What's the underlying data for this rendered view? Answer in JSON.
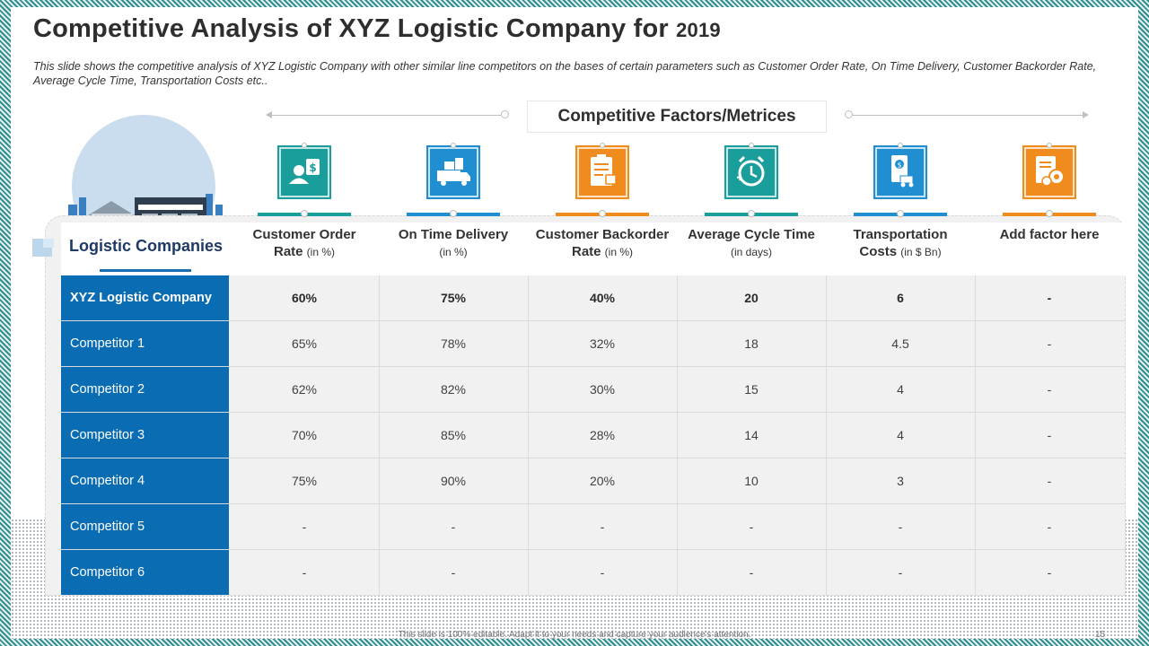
{
  "slide": {
    "title_main": "Competitive Analysis of XYZ Logistic Company for",
    "title_year": "2019",
    "subtitle": "This slide shows the competitive analysis of XYZ Logistic Company with other similar line competitors on the bases of certain parameters such as Customer Order Rate, On Time Delivery, Customer Backorder Rate, Average Cycle Time, Transportation Costs etc..",
    "factors_title": "Competitive Factors/Metrices",
    "companies_title": "Logistic Companies",
    "footer": "This slide is 100% editable. Adapt it to your needs and capture your audience's attention.",
    "page_number": "15"
  },
  "columns": [
    {
      "line1": "Customer Order",
      "line2": "Rate",
      "unit": "(in %)",
      "icon": "customer-order-icon",
      "color": "#1a9e9b"
    },
    {
      "line1": "On Time Delivery",
      "line2": "",
      "unit": "(in %)",
      "icon": "delivery-truck-icon",
      "color": "#1f8fd1"
    },
    {
      "line1": "Customer Backorder",
      "line2": "Rate",
      "unit": "(in %)",
      "icon": "backorder-clipboard-icon",
      "color": "#f08c1e"
    },
    {
      "line1": "Average Cycle Time",
      "line2": "",
      "unit": "(in days)",
      "icon": "cycle-clock-icon",
      "color": "#1a9e9b"
    },
    {
      "line1": "Transportation",
      "line2": "Costs",
      "unit": "(in $ Bn)",
      "icon": "transport-cost-icon",
      "color": "#1f8fd1"
    },
    {
      "line1": "Add factor here",
      "line2": "",
      "unit": "",
      "icon": "settings-document-icon",
      "color": "#f08c1e"
    }
  ],
  "rows": [
    {
      "name": "XYZ Logistic Company",
      "values": [
        "60%",
        "75%",
        "40%",
        "20",
        "6",
        "-"
      ]
    },
    {
      "name": "Competitor 1",
      "values": [
        "65%",
        "78%",
        "32%",
        "18",
        "4.5",
        "-"
      ]
    },
    {
      "name": "Competitor 2",
      "values": [
        "62%",
        "82%",
        "30%",
        "15",
        "4",
        "-"
      ]
    },
    {
      "name": "Competitor 3",
      "values": [
        "70%",
        "85%",
        "28%",
        "14",
        "4",
        "-"
      ]
    },
    {
      "name": "Competitor 4",
      "values": [
        "75%",
        "90%",
        "20%",
        "10",
        "3",
        "-"
      ]
    },
    {
      "name": "Competitor 5",
      "values": [
        "-",
        "-",
        "-",
        "-",
        "-",
        "-"
      ]
    },
    {
      "name": "Competitor 6",
      "values": [
        "-",
        "-",
        "-",
        "-",
        "-",
        "-"
      ]
    }
  ],
  "colors": {
    "row_blue": "#0a6db3",
    "teal": "#1a9e9b",
    "blue": "#1f8fd1",
    "orange": "#f08c1e"
  }
}
